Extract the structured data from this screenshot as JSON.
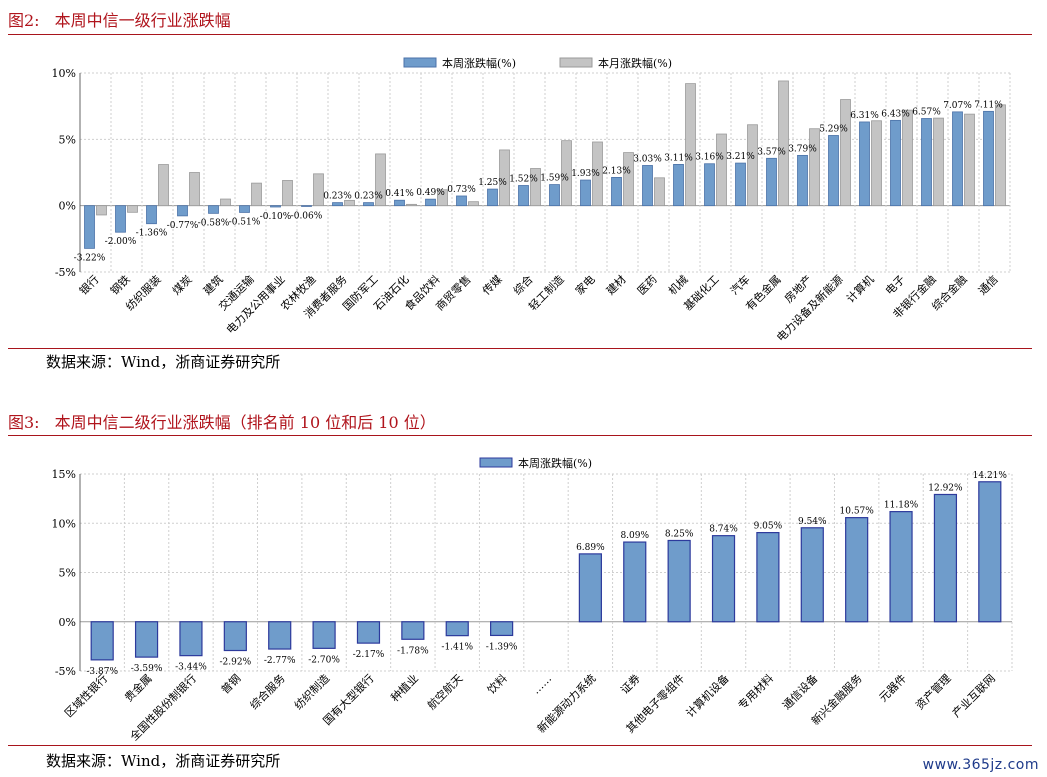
{
  "fig1": {
    "title_num": "图2:",
    "title_text": "本周中信一级行业涨跌幅",
    "source": "数据来源：Wind，浙商证券研究所"
  },
  "fig2": {
    "title_num": "图3:",
    "title_text": "本周中信二级行业涨跌幅（排名前 10 位和后 10 位）",
    "source": "数据来源：Wind，浙商证券研究所"
  },
  "watermark": "www.365jz.com",
  "colors": {
    "title_red": "#b0141c",
    "bar_blue": "#6f9ccb",
    "bar_blue_edge": "#4b72a8",
    "bar_blue2": "#6f9ccb",
    "bar_blue2_edge": "#2d3a9c",
    "bar_gray": "#c4c4c4",
    "bar_gray_edge": "#9a9a9a",
    "grid": "#cfcfcf"
  },
  "chart_data": [
    {
      "type": "bar",
      "title": "",
      "xlabel": "",
      "ylabel": "",
      "ylim": [
        -5,
        10
      ],
      "yticks": [
        "-5%",
        "0%",
        "5%",
        "10%"
      ],
      "ytick_values": [
        -5,
        0,
        5,
        10
      ],
      "legend_position": "top-center",
      "grid": true,
      "categories": [
        "银行",
        "钢铁",
        "纺织服装",
        "煤炭",
        "建筑",
        "交通运输",
        "电力及公用事业",
        "农林牧渔",
        "消费者服务",
        "国防军工",
        "石油石化",
        "食品饮料",
        "商贸零售",
        "传媒",
        "综合",
        "轻工制造",
        "家电",
        "建材",
        "医药",
        "机械",
        "基础化工",
        "汽车",
        "有色金属",
        "房地产",
        "电力设备及新能源",
        "计算机",
        "电子",
        "非银行金融",
        "综合金融",
        "通信"
      ],
      "series": [
        {
          "name": "本周涨跌幅(%)",
          "values": [
            -3.22,
            -2.0,
            -1.36,
            -0.77,
            -0.58,
            -0.51,
            -0.1,
            -0.06,
            0.23,
            0.23,
            0.41,
            0.49,
            0.73,
            1.25,
            1.52,
            1.59,
            1.93,
            2.13,
            3.03,
            3.11,
            3.16,
            3.21,
            3.57,
            3.79,
            5.29,
            6.31,
            6.43,
            6.57,
            7.07,
            7.11
          ],
          "labels": [
            "-3.22%",
            "-2.00%",
            "-1.36%",
            "-0.77%",
            "-0.58%",
            "-0.51%",
            "-0.10%",
            "-0.06%",
            "0.23%",
            "0.23%",
            "0.41%",
            "0.49%",
            "0.73%",
            "1.25%",
            "1.52%",
            "1.59%",
            "1.93%",
            "2.13%",
            "3.03%",
            "3.11%",
            "3.16%",
            "3.21%",
            "3.57%",
            "3.79%",
            "5.29%",
            "6.31%",
            "6.43%",
            "6.57%",
            "7.07%",
            "7.11%"
          ]
        },
        {
          "name": "本月涨跌幅(%)",
          "values": [
            -0.7,
            -0.5,
            3.1,
            2.5,
            0.5,
            1.7,
            1.9,
            2.4,
            0.4,
            3.9,
            0.1,
            1.2,
            0.3,
            4.2,
            2.8,
            4.9,
            4.8,
            4.0,
            2.1,
            9.2,
            5.4,
            6.1,
            9.4,
            5.8,
            8.0,
            6.4,
            7.2,
            6.6,
            6.9,
            7.6
          ]
        }
      ]
    },
    {
      "type": "bar",
      "title": "",
      "xlabel": "",
      "ylabel": "",
      "ylim": [
        -5,
        15
      ],
      "yticks": [
        "-5%",
        "0%",
        "5%",
        "10%",
        "15%"
      ],
      "ytick_values": [
        -5,
        0,
        5,
        10,
        15
      ],
      "legend_position": "top-center",
      "grid": true,
      "categories": [
        "区域性银行",
        "贵金属",
        "全国性股份制银行",
        "普钢",
        "综合服务",
        "纺织制造",
        "国有大型银行",
        "种植业",
        "航空航天",
        "饮料",
        "……",
        "新能源动力系统",
        "证券",
        "其他电子零组件",
        "计算机设备",
        "专用材料",
        "通信设备",
        "新兴金融服务",
        "元器件",
        "资产管理",
        "产业互联网"
      ],
      "series": [
        {
          "name": "本周涨跌幅(%)",
          "values": [
            -3.87,
            -3.59,
            -3.44,
            -2.92,
            -2.77,
            -2.7,
            -2.17,
            -1.78,
            -1.41,
            -1.39,
            null,
            6.89,
            8.09,
            8.25,
            8.74,
            9.05,
            9.54,
            10.57,
            11.18,
            12.92,
            14.21
          ],
          "labels": [
            "-3.87%",
            "-3.59%",
            "-3.44%",
            "-2.92%",
            "-2.77%",
            "-2.70%",
            "-2.17%",
            "-1.78%",
            "-1.41%",
            "-1.39%",
            "",
            "6.89%",
            "8.09%",
            "8.25%",
            "8.74%",
            "9.05%",
            "9.54%",
            "10.57%",
            "11.18%",
            "12.92%",
            "14.21%"
          ]
        }
      ]
    }
  ]
}
